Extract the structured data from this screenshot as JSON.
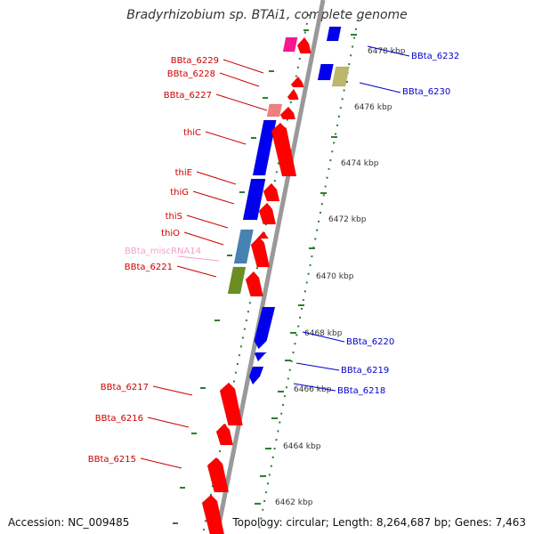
{
  "title": "Bradyrhizobium sp. BTAi1, complete genome",
  "footer": {
    "accession": "Accession: NC_009485",
    "topology": "Topology: circular; Length: 8,264,687 bp; Genes: 7,463"
  },
  "colors": {
    "backbone": "#999999",
    "ruler_tick": "#2e7d32",
    "forward_label": "#cc0000",
    "reverse_label": "#0000cc",
    "misc_rna_label": "#f4a0c8",
    "forward_gene": "#ff0000",
    "reverse_gene": "#0000ee",
    "misc_rna_gene": "#4682b4",
    "other_gene": "#6b8e23"
  },
  "ruler_labels": [
    "6478 kbp",
    "6476 kbp",
    "6474 kbp",
    "6472 kbp",
    "6470 kbp",
    "6468 kbp",
    "6466 kbp",
    "6464 kbp",
    "6462 kbp"
  ],
  "genes": [
    {
      "label": "BBta_6232",
      "strand": "reverse",
      "color": "#0000ee"
    },
    {
      "label": "BBta_6230",
      "strand": "reverse",
      "color": "#bdb76b"
    },
    {
      "label": "BBta_6229",
      "strand": "forward",
      "color": "#ff1493"
    },
    {
      "label": "BBta_6228",
      "strand": "forward",
      "color": "#ff0000"
    },
    {
      "label": "BBta_6227",
      "strand": "forward",
      "color": "#ff0000"
    },
    {
      "label": "thiC",
      "strand": "forward",
      "color": "#ff0000"
    },
    {
      "label": "thiE",
      "strand": "forward",
      "color": "#ff0000"
    },
    {
      "label": "thiG",
      "strand": "forward",
      "color": "#ff0000"
    },
    {
      "label": "thiS",
      "strand": "forward",
      "color": "#ff0000"
    },
    {
      "label": "thiO",
      "strand": "forward",
      "color": "#ff0000"
    },
    {
      "label": "BBta_miscRNA14",
      "strand": "forward",
      "color": "#4682b4"
    },
    {
      "label": "BBta_6221",
      "strand": "forward",
      "color": "#ff0000"
    },
    {
      "label": "BBta_6220",
      "strand": "reverse",
      "color": "#0000ee"
    },
    {
      "label": "BBta_6219",
      "strand": "reverse",
      "color": "#0000ee"
    },
    {
      "label": "BBta_6218",
      "strand": "reverse",
      "color": "#0000ee"
    },
    {
      "label": "BBta_6217",
      "strand": "forward",
      "color": "#ff0000"
    },
    {
      "label": "BBta_6216",
      "strand": "forward",
      "color": "#ff0000"
    },
    {
      "label": "BBta_6215",
      "strand": "forward",
      "color": "#ff0000"
    }
  ]
}
